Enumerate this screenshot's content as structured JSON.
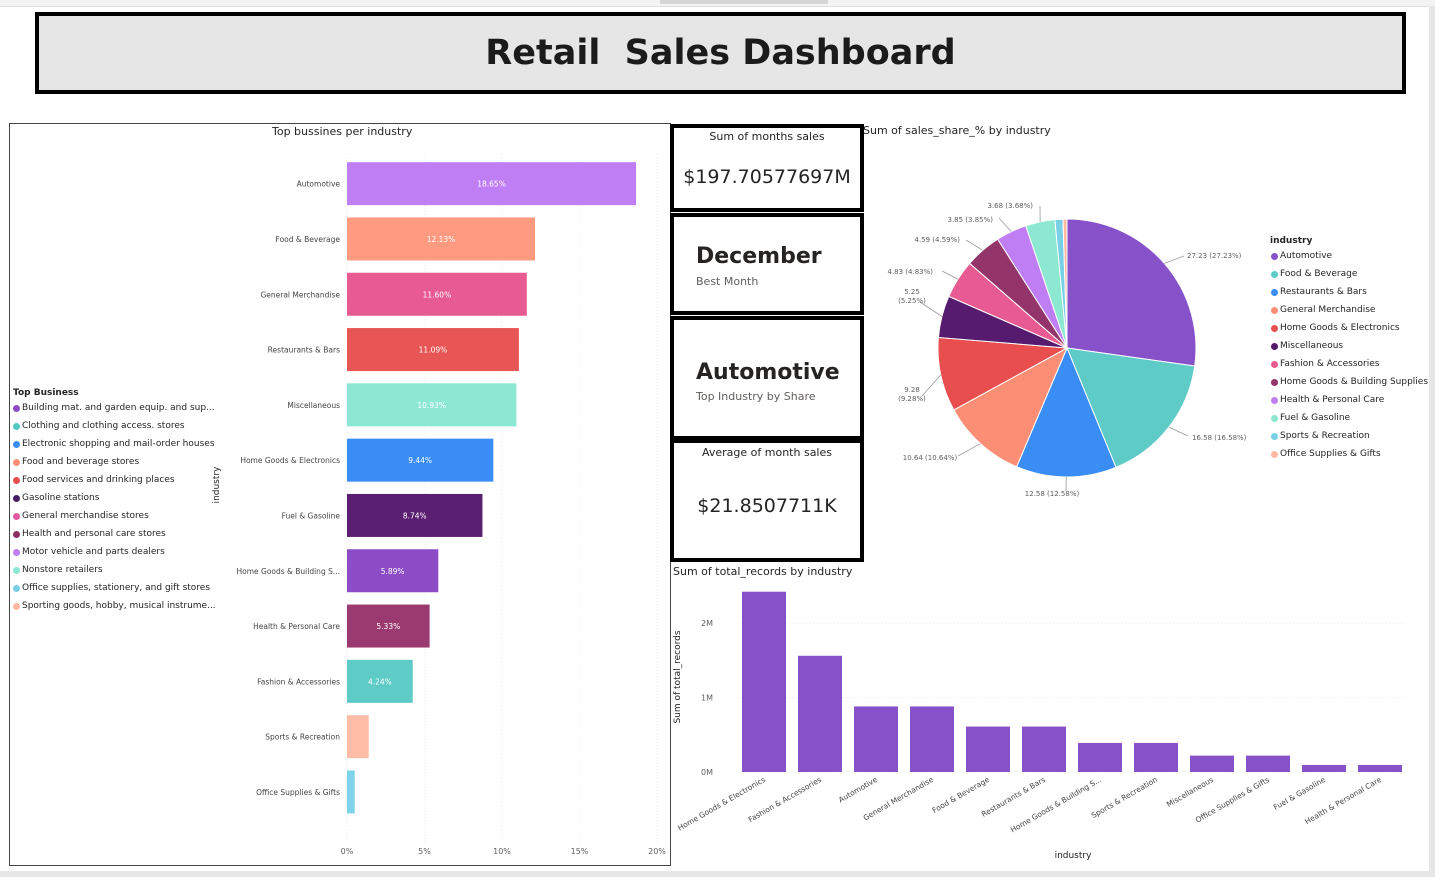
{
  "title": "Retail  Sales Dashboard",
  "left_chart": {
    "title": "Top bussines per industry",
    "y_axis_label": "industry",
    "legend_title": "Top Business",
    "legend": [
      {
        "label": "Building mat. and garden equip. and sup...",
        "color": "#8c4cc6"
      },
      {
        "label": "Clothing and clothing access. stores",
        "color": "#54c9c4"
      },
      {
        "label": "Electronic shopping and mail-order houses",
        "color": "#3b8df6"
      },
      {
        "label": "Food and beverage stores",
        "color": "#fd8e76"
      },
      {
        "label": "Food services and drinking places",
        "color": "#e84e4e"
      },
      {
        "label": "Gasoline stations",
        "color": "#4b1c66"
      },
      {
        "label": "General merchandise stores",
        "color": "#e35b9c"
      },
      {
        "label": "Health and personal care stores",
        "color": "#8e2f63"
      },
      {
        "label": "Motor vehicle and parts dealers",
        "color": "#c07ef5"
      },
      {
        "label": "Nonstore retailers",
        "color": "#8ce8d1"
      },
      {
        "label": "Office supplies, stationery, and gift stores",
        "color": "#78cfe6"
      },
      {
        "label": "Sporting goods, hobby, musical instrume...",
        "color": "#ffb9a1"
      }
    ]
  },
  "cards": {
    "sum_title": "Sum of months sales",
    "sum_value": "$197.70577697M",
    "best_month": "December",
    "best_month_label": "Best Month",
    "top_industry": "Automotive",
    "top_industry_label": "Top Industry by Share",
    "avg_title": "Average of month sales",
    "avg_value": "$21.8507711K"
  },
  "pie": {
    "title": "Sum of sales_share_% by industry",
    "legend_title": "industry"
  },
  "bottom_chart": {
    "title": "Sum of total_records by industry",
    "y_axis_label": "Sum of total_records",
    "x_axis_label": "industry"
  },
  "chart_data": [
    {
      "type": "bar",
      "orientation": "horizontal",
      "title": "Top bussines per industry",
      "ylabel": "industry",
      "xlim": [
        0,
        20
      ],
      "x_ticks": [
        "0%",
        "5%",
        "10%",
        "15%",
        "20%"
      ],
      "categories": [
        "Automotive",
        "Food & Beverage",
        "General Merchandise",
        "Restaurants & Bars",
        "Miscellaneous",
        "Home Goods & Electronics",
        "Fuel & Gasoline",
        "Home Goods & Building S...",
        "Health & Personal Care",
        "Fashion & Accessories",
        "Sports & Recreation",
        "Office Supplies & Gifts"
      ],
      "values": [
        18.65,
        12.13,
        11.6,
        11.09,
        10.93,
        9.44,
        8.74,
        5.89,
        5.33,
        4.24,
        1.4,
        0.5
      ],
      "labels": [
        "18.65%",
        "12.13%",
        "11.60%",
        "11.09%",
        "10.93%",
        "9.44%",
        "8.74%",
        "5.89%",
        "5.33%",
        "4.24%",
        "",
        ""
      ],
      "colors": [
        "#c07ef5",
        "#fd9a7f",
        "#e85b92",
        "#e85555",
        "#8de8d3",
        "#3b8df6",
        "#5b1f72",
        "#8c4cc6",
        "#9b3a70",
        "#5ecbc6",
        "#ffbca6",
        "#7fd3ea"
      ],
      "legend": "left",
      "grid": true
    },
    {
      "type": "pie",
      "title": "Sum of sales_share_% by industry",
      "categories": [
        "Automotive",
        "Food & Beverage",
        "Restaurants & Bars",
        "General Merchandise",
        "Home Goods & Electronics",
        "Miscellaneous",
        "Fashion & Accessories",
        "Home Goods & Building Supplies",
        "Health & Personal Care",
        "Fuel & Gasoline",
        "Sports & Recreation",
        "Office Supplies & Gifts"
      ],
      "values": [
        27.23,
        16.58,
        12.58,
        10.64,
        9.28,
        5.25,
        4.83,
        4.59,
        3.85,
        3.68,
        1.0,
        0.5
      ],
      "labels": [
        "27.23 (27.23%)",
        "16.58 (16.58%)",
        "12.58 (12.58%)",
        "10.64 (10.64%)",
        "9.28 (9.28%)",
        "5.25 (5.25%)",
        "4.83 (4.83%)",
        "4.59 (4.59%)",
        "3.85 (3.85%)",
        "3.68 (3.68%)",
        "",
        ""
      ],
      "colors": [
        "#8651c9",
        "#5ecbc6",
        "#3b8df6",
        "#fd8e76",
        "#e84e4e",
        "#561a6e",
        "#e85b92",
        "#93346a",
        "#c07ef5",
        "#8ce8d1",
        "#78cfe6",
        "#ffb9a1"
      ],
      "legend": "right"
    },
    {
      "type": "bar",
      "title": "Sum of total_records by industry",
      "xlabel": "industry",
      "ylabel": "Sum of total_records",
      "ylim": [
        0,
        2500000
      ],
      "y_ticks": [
        "0M",
        "1M",
        "2M"
      ],
      "categories": [
        "Home Goods & Electronics",
        "Fashion & Accessories",
        "Automotive",
        "General Merchandise",
        "Food & Beverage",
        "Restaurants & Bars",
        "Home Goods & Building S...",
        "Sports & Recreation",
        "Miscellaneous",
        "Office Supplies & Gifts",
        "Fuel & Gasoline",
        "Health & Personal Care"
      ],
      "values": [
        2420000,
        1560000,
        880000,
        880000,
        610000,
        610000,
        390000,
        390000,
        220000,
        220000,
        95000,
        95000
      ],
      "color": "#8651c9",
      "grid": true
    }
  ]
}
